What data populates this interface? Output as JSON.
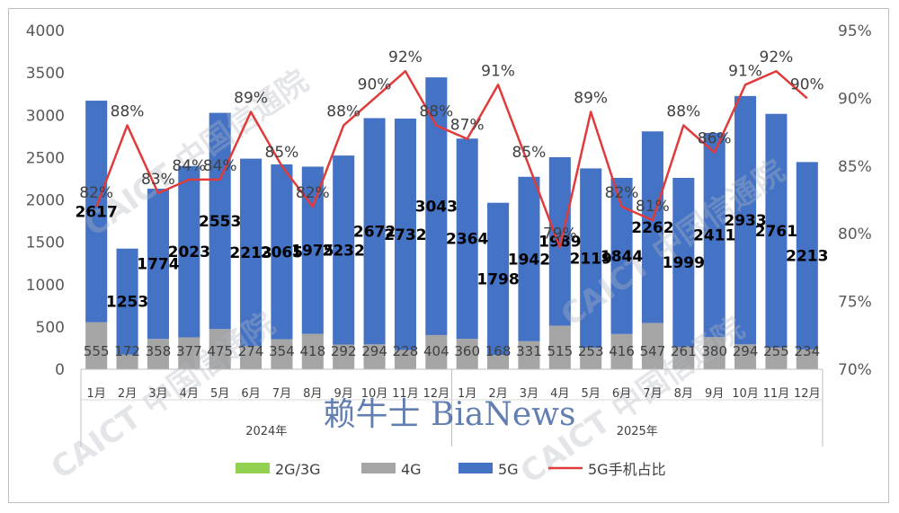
{
  "chart_data": {
    "type": "bar",
    "stacked": true,
    "categories": [
      "1月",
      "2月",
      "3月",
      "4月",
      "5月",
      "6月",
      "7月",
      "8月",
      "9月",
      "10月",
      "11月",
      "12月",
      "1月",
      "2月",
      "3月",
      "4月",
      "5月",
      "6月",
      "7月",
      "8月",
      "9月",
      "10月",
      "11月",
      "12月"
    ],
    "groups": [
      {
        "label": "2024年",
        "from": 0,
        "to": 11
      },
      {
        "label": "2025年",
        "from": 12,
        "to": 23
      }
    ],
    "series": [
      {
        "name": "2G/3G",
        "color": "#92d050",
        "values": [
          0,
          0,
          0,
          0,
          0,
          0,
          0,
          0,
          0,
          0,
          0,
          0,
          0,
          0,
          0,
          0,
          0,
          0,
          0,
          0,
          0,
          0,
          0,
          0
        ]
      },
      {
        "name": "4G",
        "color": "#a5a5a5",
        "values": [
          555,
          172,
          358,
          377,
          475,
          274,
          354,
          418,
          292,
          294,
          228,
          404,
          360,
          168,
          331,
          515,
          253,
          416,
          547,
          261,
          380,
          294,
          255,
          234
        ]
      },
      {
        "name": "5G",
        "color": "#4472c4",
        "values": [
          2617,
          1253,
          1774,
          2023,
          2553,
          2213,
          2065,
          1975,
          2232,
          2672,
          2732,
          3043,
          2364,
          1798,
          1942,
          1989,
          2119,
          1844,
          2262,
          1999,
          2411,
          2933,
          2761,
          2213
        ]
      },
      {
        "name": "5G手机占比",
        "color": "#e03b3b",
        "type": "line",
        "axis": "right",
        "values": [
          82,
          88,
          83,
          84,
          84,
          89,
          85,
          82,
          88,
          90,
          92,
          88,
          87,
          91,
          85,
          79,
          89,
          82,
          81,
          88,
          86,
          91,
          92,
          90
        ]
      }
    ],
    "labels_4g": [
      "555",
      "172",
      "358",
      "377",
      "475",
      "274",
      "354",
      "418",
      "292",
      "294",
      "228",
      "404",
      "360",
      "168",
      "331",
      "515",
      "253",
      "416",
      "547",
      "261",
      "380",
      "294",
      "255",
      "234"
    ],
    "labels_5g": [
      "2617",
      "1253",
      "1774",
      "2023",
      "2553",
      "2213",
      "2065",
      "1975",
      "2232",
      "2672",
      "2732",
      "3043",
      "2364",
      "1798",
      "1942",
      "1989",
      "2119",
      "1844",
      "2262",
      "1999",
      "2411",
      "2933",
      "2761",
      "2213"
    ],
    "labels_pct": [
      "82%",
      "88%",
      "83%",
      "84%",
      "84%",
      "89%",
      "85%",
      "82%",
      "88%",
      "90%",
      "92%",
      "88%",
      "87%",
      "91%",
      "85%",
      "79%",
      "89%",
      "82%",
      "81%",
      "88%",
      "86%",
      "91%",
      "92%",
      "90%"
    ],
    "y_left": {
      "min": 0,
      "max": 4000,
      "ticks": [
        "0",
        "500",
        "1000",
        "1500",
        "2000",
        "2500",
        "3000",
        "3500",
        "4000"
      ]
    },
    "y_right": {
      "min": 70,
      "max": 95,
      "ticks": [
        "70%",
        "75%",
        "80%",
        "85%",
        "90%",
        "95%"
      ]
    },
    "legend": {
      "position": "bottom",
      "items": [
        "2G/3G",
        "4G",
        "5G",
        "5G手机占比"
      ]
    },
    "grid": false
  },
  "watermark": {
    "text": "赖牛士 BiaNews",
    "color": "#2f5597"
  },
  "stamps": [
    "CAICT 中国信通院",
    "CAICT 中国信通院",
    "CAICT 中国信通院",
    "CAICT 中国信通院"
  ]
}
